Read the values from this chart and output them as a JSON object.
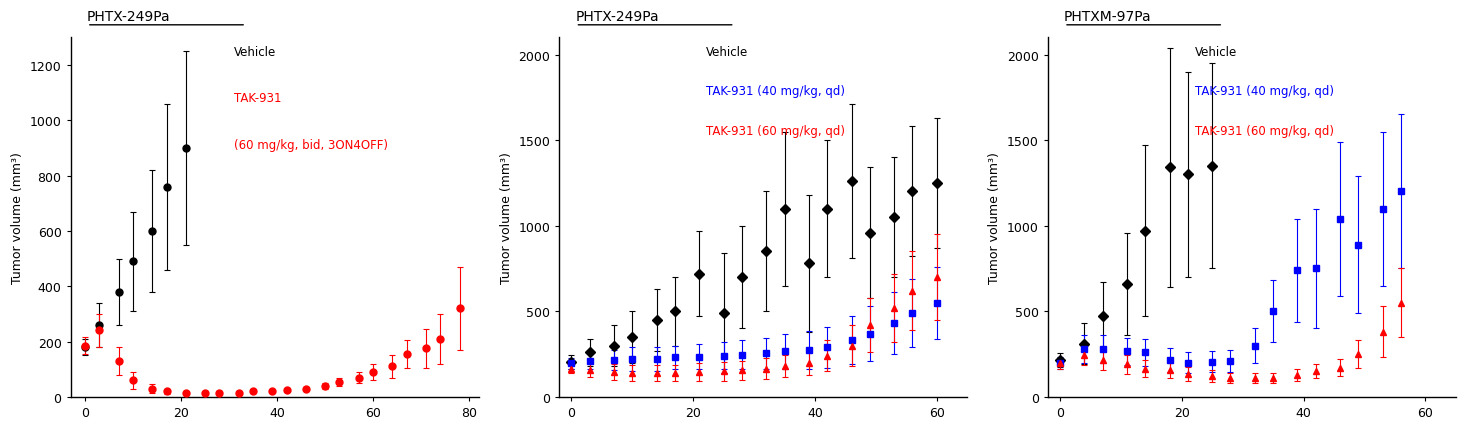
{
  "panel1": {
    "title": "PHTX-249Pa",
    "ylabel": "Tumor volume (mm³)",
    "xlim": [
      -3,
      82
    ],
    "ylim": [
      0,
      1300
    ],
    "yticks": [
      0,
      200,
      400,
      600,
      800,
      1000,
      1200
    ],
    "xticks": [
      0,
      20,
      40,
      60,
      80
    ],
    "treatment_bar": [
      0,
      21
    ],
    "legend_texts": [
      "Vehicle",
      "TAK-931",
      "(60 mg/kg, bid, 3ON4OFF)"
    ],
    "legend_colors": [
      "#000000",
      "#ff0000",
      "#ff0000"
    ],
    "series": [
      {
        "label": "Vehicle",
        "color": "#000000",
        "marker": "o",
        "markersize": 5,
        "x": [
          0,
          3,
          7,
          10,
          14,
          17,
          21
        ],
        "y": [
          180,
          260,
          380,
          490,
          600,
          760,
          900
        ],
        "yerr": [
          30,
          80,
          120,
          180,
          220,
          300,
          350
        ]
      },
      {
        "label": "TAK-931 (60 mg/kg, bid, 3ON4OFF)",
        "color": "#ff0000",
        "marker": "o",
        "markersize": 5,
        "x": [
          0,
          3,
          7,
          10,
          14,
          17,
          21,
          25,
          28,
          32,
          35,
          39,
          42,
          46,
          50,
          53,
          57,
          60,
          64,
          67,
          71,
          74,
          78
        ],
        "y": [
          185,
          240,
          130,
          60,
          30,
          20,
          15,
          15,
          15,
          15,
          20,
          20,
          25,
          30,
          40,
          55,
          70,
          90,
          110,
          155,
          175,
          210,
          320
        ],
        "yerr": [
          30,
          60,
          50,
          30,
          15,
          10,
          5,
          5,
          5,
          5,
          5,
          5,
          5,
          5,
          10,
          15,
          20,
          30,
          40,
          50,
          70,
          90,
          150
        ]
      }
    ]
  },
  "panel2": {
    "title": "PHTX-249Pa",
    "ylabel": "Tumor volume (mm³)",
    "xlim": [
      -2,
      65
    ],
    "ylim": [
      0,
      2100
    ],
    "yticks": [
      0,
      500,
      1000,
      1500,
      2000
    ],
    "xticks": [
      0,
      20,
      40,
      60
    ],
    "treatment_bar": [
      0,
      26
    ],
    "legend_texts": [
      "Vehicle",
      "TAK-931 (40 mg/kg, qd)",
      "TAK-931 (60 mg/kg, qd)"
    ],
    "legend_colors": [
      "#000000",
      "#0000ff",
      "#ff0000"
    ],
    "series": [
      {
        "label": "Vehicle",
        "color": "#000000",
        "marker": "D",
        "markersize": 5,
        "x": [
          0,
          3,
          7,
          10,
          14,
          17,
          21,
          25,
          28,
          32,
          35,
          39,
          42,
          46,
          49,
          53,
          56,
          60
        ],
        "y": [
          205,
          260,
          300,
          350,
          450,
          500,
          720,
          490,
          700,
          850,
          1100,
          780,
          1100,
          1260,
          960,
          1050,
          1200,
          1250
        ],
        "yerr": [
          40,
          80,
          120,
          150,
          180,
          200,
          250,
          350,
          300,
          350,
          450,
          400,
          400,
          450,
          380,
          350,
          380,
          380
        ]
      },
      {
        "label": "TAK-931 (40 mg/kg, qd)",
        "color": "#0000ff",
        "marker": "s",
        "markersize": 5,
        "x": [
          0,
          3,
          7,
          10,
          14,
          17,
          21,
          25,
          28,
          32,
          35,
          39,
          42,
          46,
          49,
          53,
          56,
          60
        ],
        "y": [
          195,
          210,
          215,
          220,
          220,
          230,
          235,
          240,
          245,
          255,
          265,
          275,
          290,
          330,
          370,
          430,
          490,
          550
        ],
        "yerr": [
          30,
          50,
          60,
          70,
          70,
          70,
          75,
          80,
          85,
          90,
          100,
          110,
          120,
          140,
          160,
          180,
          200,
          210
        ]
      },
      {
        "label": "TAK-931 (60 mg/kg, qd)",
        "color": "#ff0000",
        "marker": "^",
        "markersize": 5,
        "x": [
          0,
          3,
          7,
          10,
          14,
          17,
          21,
          25,
          28,
          32,
          35,
          39,
          42,
          46,
          49,
          53,
          56,
          60
        ],
        "y": [
          165,
          155,
          145,
          140,
          140,
          140,
          145,
          150,
          155,
          165,
          180,
          200,
          240,
          300,
          420,
          520,
          620,
          700
        ],
        "yerr": [
          25,
          40,
          45,
          45,
          45,
          45,
          50,
          55,
          55,
          60,
          65,
          75,
          90,
          120,
          160,
          200,
          230,
          250
        ]
      }
    ]
  },
  "panel3": {
    "title": "PHTXM-97Pa",
    "ylabel": "Tumor volume (mm³)",
    "xlim": [
      -2,
      65
    ],
    "ylim": [
      0,
      2100
    ],
    "yticks": [
      0,
      500,
      1000,
      1500,
      2000
    ],
    "xticks": [
      0,
      20,
      40,
      60
    ],
    "treatment_bar": [
      0,
      22
    ],
    "legend_texts": [
      "Vehicle",
      "TAK-931 (40 mg/kg, qd)",
      "TAK-931 (60 mg/kg, qd)"
    ],
    "legend_colors": [
      "#000000",
      "#0000ff",
      "#ff0000"
    ],
    "series": [
      {
        "label": "Vehicle",
        "color": "#000000",
        "marker": "D",
        "markersize": 5,
        "x": [
          0,
          4,
          7,
          11,
          14,
          18,
          21,
          25
        ],
        "y": [
          215,
          310,
          470,
          660,
          970,
          1340,
          1300,
          1350
        ],
        "yerr": [
          40,
          120,
          200,
          300,
          500,
          700,
          600,
          600
        ]
      },
      {
        "label": "TAK-931 (40 mg/kg, qd)",
        "color": "#0000ff",
        "marker": "s",
        "markersize": 5,
        "x": [
          0,
          4,
          7,
          11,
          14,
          18,
          21,
          25,
          28,
          32,
          35,
          39,
          42,
          46,
          49,
          53,
          56
        ],
        "y": [
          200,
          280,
          280,
          265,
          260,
          215,
          200,
          205,
          210,
          300,
          500,
          740,
          750,
          1040,
          890,
          1100,
          1200
        ],
        "yerr": [
          35,
          80,
          80,
          80,
          80,
          70,
          60,
          60,
          65,
          100,
          180,
          300,
          350,
          450,
          400,
          450,
          450
        ]
      },
      {
        "label": "TAK-931 (60 mg/kg, qd)",
        "color": "#ff0000",
        "marker": "^",
        "markersize": 5,
        "x": [
          0,
          4,
          7,
          11,
          14,
          18,
          21,
          25,
          28,
          32,
          35,
          39,
          42,
          46,
          49,
          53,
          56
        ],
        "y": [
          195,
          245,
          215,
          190,
          165,
          155,
          135,
          120,
          110,
          110,
          110,
          130,
          150,
          170,
          250,
          380,
          550
        ],
        "yerr": [
          30,
          60,
          60,
          55,
          50,
          45,
          40,
          35,
          30,
          30,
          30,
          35,
          40,
          50,
          80,
          150,
          200
        ]
      }
    ]
  }
}
